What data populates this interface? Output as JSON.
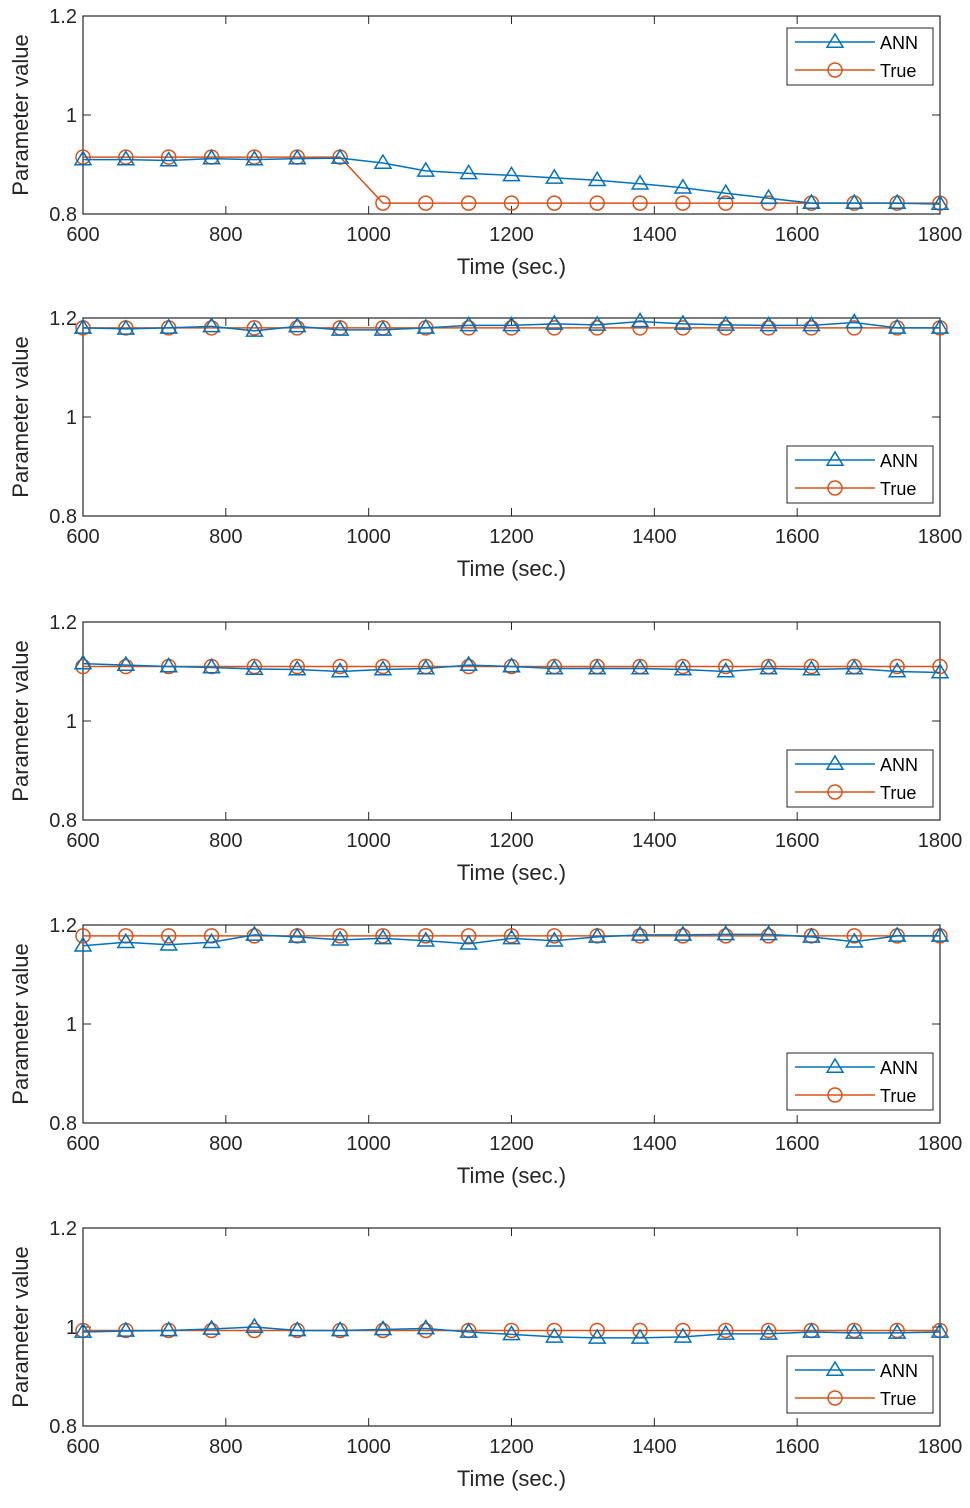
{
  "colors": {
    "ann": "#0072BD",
    "true": "#D95319",
    "axis": "#262626"
  },
  "chart_data": [
    {
      "type": "line",
      "xlabel": "Time (sec.)",
      "ylabel": "Parameter value",
      "xlim": [
        600,
        1800
      ],
      "ylim": [
        0.8,
        1.2
      ],
      "xticks": [
        "600",
        "800",
        "1000",
        "1200",
        "1400",
        "1600",
        "1800"
      ],
      "yticks": [
        "0.8",
        "1",
        "1.2"
      ],
      "legend_position": "top-right",
      "grid": false,
      "x": [
        600,
        660,
        720,
        780,
        840,
        900,
        960,
        1020,
        1080,
        1140,
        1200,
        1260,
        1320,
        1380,
        1440,
        1500,
        1560,
        1620,
        1680,
        1740,
        1800
      ],
      "series": [
        {
          "name": "ANN",
          "marker": "triangle",
          "values": [
            0.91,
            0.91,
            0.908,
            0.912,
            0.91,
            0.912,
            0.913,
            0.903,
            0.887,
            0.882,
            0.878,
            0.873,
            0.868,
            0.861,
            0.853,
            0.842,
            0.832,
            0.822,
            0.822,
            0.822,
            0.82
          ]
        },
        {
          "name": "True",
          "marker": "circle",
          "values": [
            0.915,
            0.915,
            0.915,
            0.915,
            0.915,
            0.915,
            0.915,
            0.822,
            0.822,
            0.822,
            0.822,
            0.822,
            0.822,
            0.822,
            0.822,
            0.822,
            0.822,
            0.822,
            0.822,
            0.822,
            0.822
          ]
        }
      ]
    },
    {
      "type": "line",
      "xlabel": "Time (sec.)",
      "ylabel": "Parameter value",
      "xlim": [
        600,
        1800
      ],
      "ylim": [
        0.8,
        1.2
      ],
      "xticks": [
        "600",
        "800",
        "1000",
        "1200",
        "1400",
        "1600",
        "1800"
      ],
      "yticks": [
        "0.8",
        "1",
        "1.2"
      ],
      "legend_position": "bottom-right",
      "grid": false,
      "x": [
        600,
        660,
        720,
        780,
        840,
        900,
        960,
        1020,
        1080,
        1140,
        1200,
        1260,
        1320,
        1380,
        1440,
        1500,
        1560,
        1620,
        1680,
        1740,
        1800
      ],
      "series": [
        {
          "name": "ANN",
          "marker": "triangle",
          "values": [
            1.18,
            1.178,
            1.18,
            1.183,
            1.174,
            1.183,
            1.176,
            1.176,
            1.18,
            1.185,
            1.185,
            1.188,
            1.186,
            1.193,
            1.188,
            1.186,
            1.185,
            1.185,
            1.191,
            1.18,
            1.18
          ]
        },
        {
          "name": "True",
          "marker": "circle",
          "values": [
            1.18,
            1.18,
            1.18,
            1.18,
            1.18,
            1.18,
            1.18,
            1.18,
            1.18,
            1.18,
            1.18,
            1.18,
            1.18,
            1.18,
            1.18,
            1.18,
            1.18,
            1.18,
            1.18,
            1.18,
            1.18
          ]
        }
      ]
    },
    {
      "type": "line",
      "xlabel": "Time (sec.)",
      "ylabel": "Parameter value",
      "xlim": [
        600,
        1800
      ],
      "ylim": [
        0.8,
        1.2
      ],
      "xticks": [
        "600",
        "800",
        "1000",
        "1200",
        "1400",
        "1600",
        "1800"
      ],
      "yticks": [
        "0.8",
        "1",
        "1.2"
      ],
      "legend_position": "bottom-right",
      "grid": false,
      "x": [
        600,
        660,
        720,
        780,
        840,
        900,
        960,
        1020,
        1080,
        1140,
        1200,
        1260,
        1320,
        1380,
        1440,
        1500,
        1560,
        1620,
        1680,
        1740,
        1800
      ],
      "series": [
        {
          "name": "ANN",
          "marker": "triangle",
          "values": [
            1.116,
            1.113,
            1.11,
            1.108,
            1.105,
            1.104,
            1.1,
            1.104,
            1.106,
            1.113,
            1.11,
            1.106,
            1.106,
            1.106,
            1.104,
            1.1,
            1.106,
            1.104,
            1.106,
            1.1,
            1.098
          ]
        },
        {
          "name": "True",
          "marker": "circle",
          "values": [
            1.11,
            1.11,
            1.11,
            1.11,
            1.11,
            1.11,
            1.11,
            1.11,
            1.11,
            1.11,
            1.11,
            1.11,
            1.11,
            1.11,
            1.11,
            1.11,
            1.11,
            1.11,
            1.11,
            1.11,
            1.11
          ]
        }
      ]
    },
    {
      "type": "line",
      "xlabel": "Time (sec.)",
      "ylabel": "Parameter value",
      "xlim": [
        600,
        1800
      ],
      "ylim": [
        0.8,
        1.2
      ],
      "xticks": [
        "600",
        "800",
        "1000",
        "1200",
        "1400",
        "1600",
        "1800"
      ],
      "yticks": [
        "0.8",
        "1",
        "1.2"
      ],
      "legend_position": "bottom-right",
      "grid": false,
      "x": [
        600,
        660,
        720,
        780,
        840,
        900,
        960,
        1020,
        1080,
        1140,
        1200,
        1260,
        1320,
        1380,
        1440,
        1500,
        1560,
        1620,
        1680,
        1740,
        1800
      ],
      "series": [
        {
          "name": "ANN",
          "marker": "triangle",
          "values": [
            1.158,
            1.165,
            1.16,
            1.165,
            1.18,
            1.176,
            1.17,
            1.173,
            1.168,
            1.162,
            1.173,
            1.168,
            1.176,
            1.18,
            1.18,
            1.181,
            1.181,
            1.176,
            1.166,
            1.178,
            1.178
          ]
        },
        {
          "name": "True",
          "marker": "circle",
          "values": [
            1.178,
            1.178,
            1.178,
            1.178,
            1.178,
            1.178,
            1.178,
            1.178,
            1.178,
            1.178,
            1.178,
            1.178,
            1.178,
            1.178,
            1.178,
            1.178,
            1.178,
            1.178,
            1.178,
            1.178,
            1.178
          ]
        }
      ]
    },
    {
      "type": "line",
      "xlabel": "Time (sec.)",
      "ylabel": "Parameter value",
      "xlim": [
        600,
        1800
      ],
      "ylim": [
        0.8,
        1.2
      ],
      "xticks": [
        "600",
        "800",
        "1000",
        "1200",
        "1400",
        "1600",
        "1800"
      ],
      "yticks": [
        "0.8",
        "1",
        "1.2"
      ],
      "legend_position": "bottom-right",
      "grid": false,
      "x": [
        600,
        660,
        720,
        780,
        840,
        900,
        960,
        1020,
        1080,
        1140,
        1200,
        1260,
        1320,
        1380,
        1440,
        1500,
        1560,
        1620,
        1680,
        1740,
        1800
      ],
      "series": [
        {
          "name": "ANN",
          "marker": "triangle",
          "values": [
            0.99,
            0.992,
            0.993,
            0.996,
            1.0,
            0.993,
            0.993,
            0.995,
            0.997,
            0.99,
            0.985,
            0.98,
            0.978,
            0.978,
            0.98,
            0.986,
            0.986,
            0.99,
            0.988,
            0.988,
            0.99
          ]
        },
        {
          "name": "True",
          "marker": "circle",
          "values": [
            0.993,
            0.993,
            0.993,
            0.993,
            0.993,
            0.993,
            0.993,
            0.993,
            0.993,
            0.993,
            0.993,
            0.993,
            0.993,
            0.993,
            0.993,
            0.993,
            0.993,
            0.993,
            0.993,
            0.993,
            0.993
          ]
        }
      ]
    }
  ]
}
